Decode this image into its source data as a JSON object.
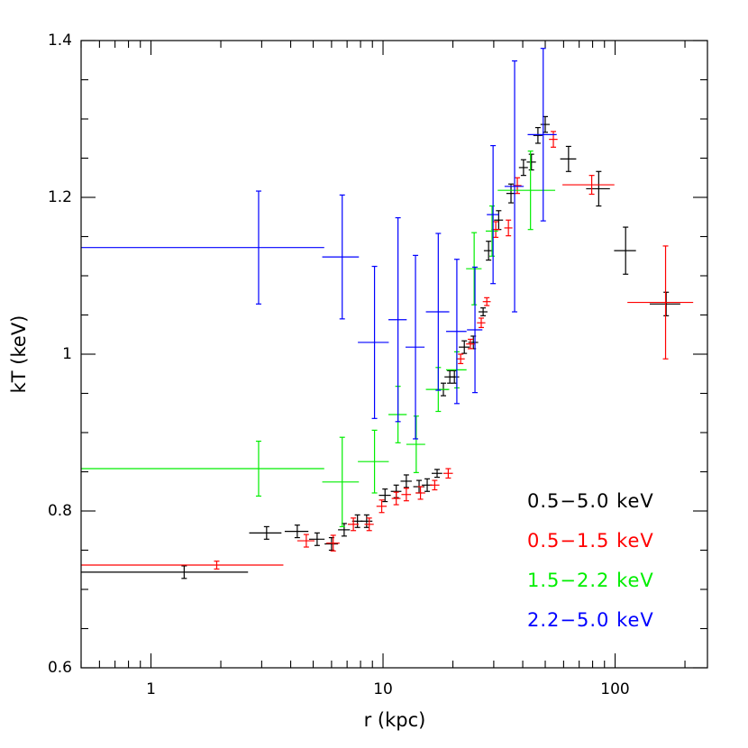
{
  "chart_data": {
    "type": "errorbar",
    "xlabel": "r (kpc)",
    "ylabel": "kT (keV)",
    "xscale": "log",
    "xlim": [
      0.5,
      250
    ],
    "ylim": [
      0.6,
      1.4
    ],
    "xticks": [
      1,
      10,
      100
    ],
    "yticks": [
      0.6,
      0.8,
      1,
      1.2,
      1.4
    ],
    "xminorticks": [
      0.5,
      0.6,
      0.7,
      0.8,
      0.9,
      2,
      3,
      4,
      5,
      6,
      7,
      8,
      9,
      20,
      30,
      40,
      50,
      60,
      70,
      80,
      90,
      200
    ],
    "yminorticks": [
      0.65,
      0.7,
      0.75,
      0.85,
      0.9,
      0.95,
      1.05,
      1.1,
      1.15,
      1.25,
      1.3,
      1.35
    ],
    "legend": "lower right",
    "series": [
      {
        "name": "0.5−5.0  keV",
        "color": "#000000",
        "x": [
          1.39,
          3.15,
          4.27,
          5.2,
          6.0,
          6.8,
          7.76,
          8.5,
          10.2,
          11.4,
          12.6,
          14.3,
          15.5,
          17.1,
          18.2,
          19.4,
          20.3,
          22.4,
          24.5,
          27,
          28.5,
          31.5,
          35.6,
          40.3,
          43.6,
          46.5,
          50,
          63,
          85,
          111,
          166
        ],
        "xerr": [
          1.23,
          0.5,
          0.5,
          0.4,
          0.4,
          0.4,
          0.4,
          0.5,
          0.6,
          0.6,
          0.7,
          0.8,
          0.8,
          0.9,
          0.9,
          1,
          1,
          1.2,
          1.2,
          1.2,
          1.3,
          1.4,
          1.6,
          1.8,
          2,
          2.1,
          2.3,
          5,
          10,
          12,
          25
        ],
        "values": [
          0.722,
          0.772,
          0.774,
          0.764,
          0.758,
          0.776,
          0.787,
          0.787,
          0.82,
          0.825,
          0.838,
          0.831,
          0.833,
          0.848,
          0.955,
          0.971,
          0.971,
          1.009,
          1.015,
          1.054,
          1.132,
          1.171,
          1.205,
          1.238,
          1.245,
          1.279,
          1.293,
          1.249,
          1.211,
          1.132,
          1.064
        ],
        "yerr": [
          0.008,
          0.008,
          0.008,
          0.008,
          0.008,
          0.008,
          0.008,
          0.008,
          0.008,
          0.008,
          0.008,
          0.008,
          0.008,
          0.005,
          0.008,
          0.008,
          0.008,
          0.008,
          0.008,
          0.005,
          0.012,
          0.012,
          0.012,
          0.01,
          0.01,
          0.01,
          0.01,
          0.016,
          0.022,
          0.03,
          0.015
        ]
      },
      {
        "name": "0.5−1.5  keV",
        "color": "#ff0000",
        "x": [
          1.92,
          4.67,
          6.1,
          7.45,
          8.72,
          9.87,
          11.4,
          12.6,
          14.5,
          16.7,
          19.1,
          21.6,
          23.8,
          26.5,
          28,
          30.6,
          34.7,
          37.9,
          54.2,
          79.3,
          165
        ],
        "xerr": [
          1.8,
          0.4,
          0.4,
          0.4,
          0.4,
          0.5,
          0.5,
          0.6,
          0.7,
          0.8,
          0.9,
          0.9,
          1,
          1.1,
          1.1,
          1.3,
          1.4,
          1.6,
          2.3,
          20,
          52
        ],
        "values": [
          0.731,
          0.762,
          0.759,
          0.783,
          0.783,
          0.806,
          0.816,
          0.821,
          0.823,
          0.833,
          0.848,
          0.994,
          1.013,
          1.04,
          1.067,
          1.159,
          1.161,
          1.215,
          1.274,
          1.216,
          1.066
        ],
        "yerr": [
          0.005,
          0.008,
          0.01,
          0.008,
          0.008,
          0.008,
          0.008,
          0.008,
          0.008,
          0.006,
          0.006,
          0.006,
          0.006,
          0.006,
          0.005,
          0.01,
          0.01,
          0.01,
          0.01,
          0.012,
          0.072
        ]
      },
      {
        "name": "1.5−2.2  keV",
        "color": "#00ee00",
        "x": [
          2.91,
          6.67,
          9.19,
          11.6,
          13.9,
          17.3,
          20.8,
          24.7,
          29.5,
          43.2
        ],
        "xerr": [
          2.67,
          1.2,
          1.4,
          1.05,
          1.3,
          2,
          2.1,
          1.9,
          1.8,
          12
        ],
        "values": [
          0.854,
          0.837,
          0.863,
          0.923,
          0.885,
          0.955,
          0.98,
          1.109,
          1.157,
          1.209
        ],
        "yerr": [
          0.035,
          0.057,
          0.04,
          0.036,
          0.036,
          0.028,
          0.023,
          0.046,
          0.032,
          0.05
        ]
      },
      {
        "name": "2.2−5.0  keV",
        "color": "#0000ff",
        "x": [
          2.91,
          6.67,
          9.19,
          11.6,
          13.8,
          17.3,
          20.8,
          24.9,
          29.8,
          36.9,
          49
        ],
        "xerr": [
          2.67,
          1.2,
          1.4,
          1.05,
          1.3,
          2,
          2.1,
          1.9,
          1.8,
          3.5,
          7
        ],
        "values": [
          1.136,
          1.124,
          1.015,
          1.044,
          1.009,
          1.054,
          1.029,
          1.031,
          1.178,
          1.214,
          1.28
        ],
        "yerr": [
          0.072,
          0.079,
          0.097,
          0.13,
          0.117,
          0.1,
          0.092,
          0.08,
          0.088,
          0.16,
          0.11
        ]
      }
    ]
  }
}
